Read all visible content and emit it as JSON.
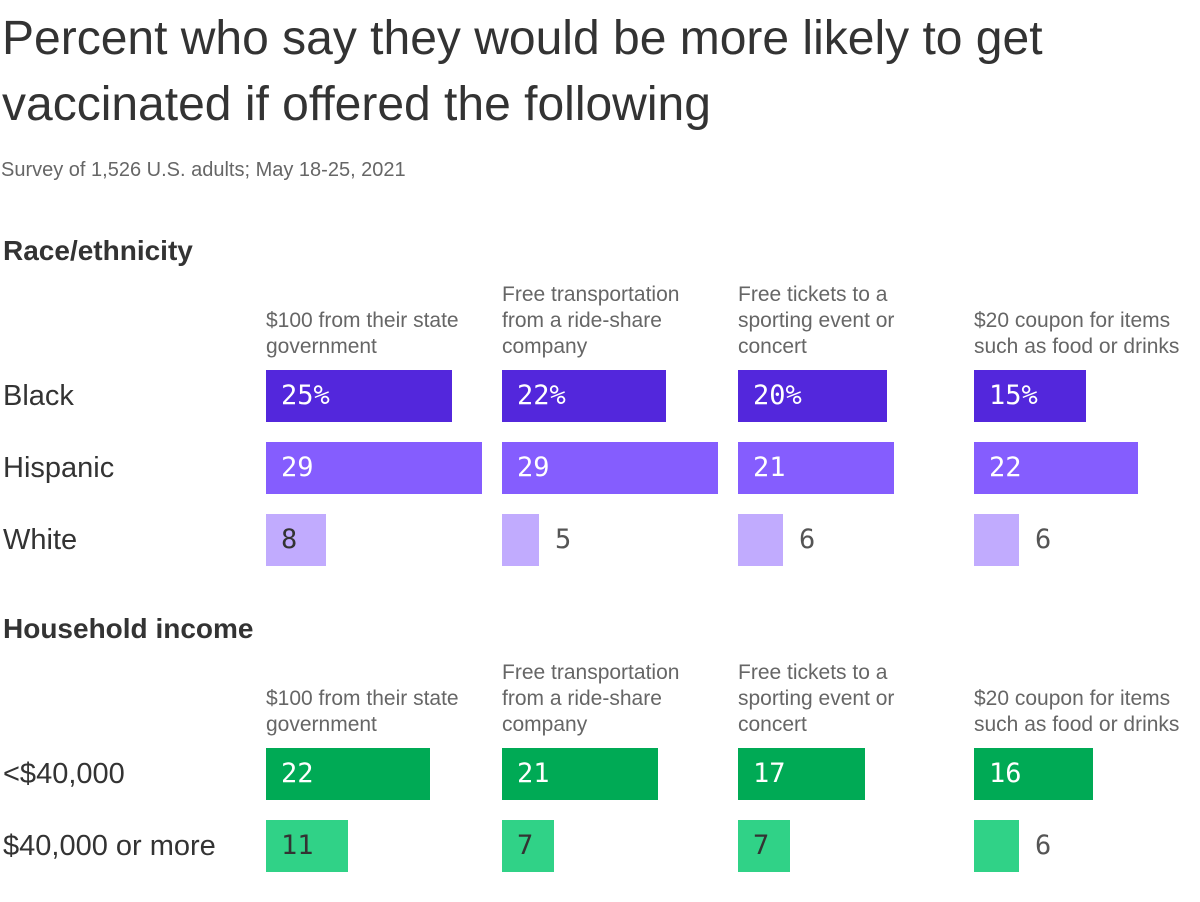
{
  "header": {
    "title": "Percent who say they would be more likely to get vaccinated if offered the following",
    "subtitle": "Survey of 1,526 U.S. adults; May 18-25, 2021"
  },
  "chart_data": {
    "type": "bar",
    "orientation": "horizontal",
    "layout": "small-multiples",
    "xlim": [
      0,
      30
    ],
    "value_labels_first_row_suffix": "%",
    "columns": [
      "$100 from their state government",
      "Free transportation from a ride-share company",
      "Free tickets to a sporting event or concert",
      "$20 coupon for items such as food or drinks"
    ],
    "panels": [
      {
        "title": "Race/ethnicity",
        "rows": [
          {
            "label": "Black",
            "values": [
              25,
              22,
              20,
              15
            ],
            "color": "#5327dc",
            "text_color": "#ffffff"
          },
          {
            "label": "Hispanic",
            "values": [
              29,
              29,
              21,
              22
            ],
            "color": "#855dfe",
            "text_color": "#ffffff"
          },
          {
            "label": "White",
            "values": [
              8,
              5,
              6,
              6
            ],
            "color": "#c1abfe",
            "text_color": "#333333"
          }
        ]
      },
      {
        "title": "Household income",
        "rows": [
          {
            "label": "<$40,000",
            "values": [
              22,
              21,
              17,
              16
            ],
            "color": "#00aa55",
            "text_color": "#ffffff"
          },
          {
            "label": "$40,000 or more",
            "values": [
              11,
              7,
              7,
              6
            ],
            "color": "#30d287",
            "text_color": "#333333"
          }
        ]
      }
    ]
  }
}
